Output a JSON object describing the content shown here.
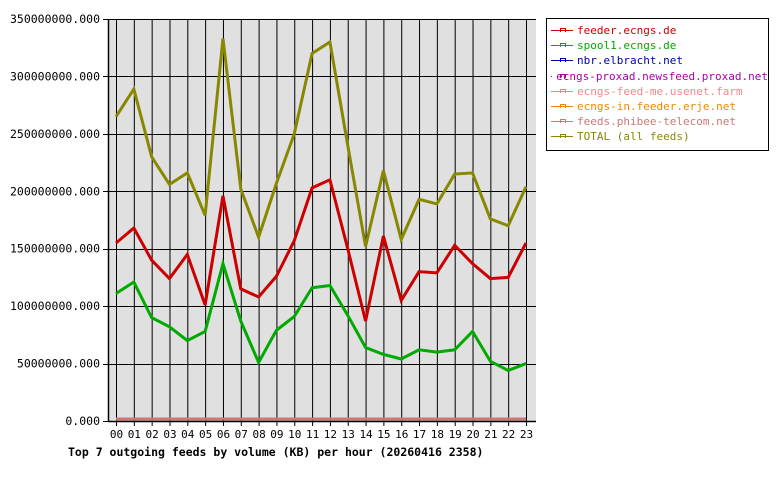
{
  "chart_data": {
    "type": "line",
    "title": "Top 7 outgoing feeds by volume (KB) per hour (20260416 2358)",
    "xlabel": "",
    "ylabel": "",
    "categories": [
      "00",
      "01",
      "02",
      "03",
      "04",
      "05",
      "06",
      "07",
      "08",
      "09",
      "10",
      "11",
      "12",
      "13",
      "14",
      "15",
      "16",
      "17",
      "18",
      "19",
      "20",
      "21",
      "22",
      "23"
    ],
    "yticks": [
      "0.000",
      "50000000.000",
      "100000000.000",
      "150000000.000",
      "200000000.000",
      "250000000.000",
      "300000000.000",
      "350000000.000"
    ],
    "ylim": [
      0,
      350000000
    ],
    "grid": true,
    "legend_position": "right",
    "series": [
      {
        "name": "feeder.ecngs.de",
        "color": "#cc0000",
        "values": [
          155000000,
          168000000,
          140000000,
          124000000,
          145000000,
          101000000,
          196000000,
          115000000,
          108000000,
          126000000,
          157000000,
          203000000,
          210000000,
          150000000,
          87000000,
          161000000,
          105000000,
          130000000,
          129000000,
          153000000,
          137000000,
          124000000,
          125000000,
          155000000
        ]
      },
      {
        "name": "spool1.ecngs.de",
        "color": "#00aa00",
        "values": [
          111000000,
          121000000,
          90000000,
          82000000,
          70000000,
          78000000,
          137000000,
          87000000,
          51000000,
          79000000,
          91000000,
          116000000,
          118000000,
          92000000,
          64000000,
          58000000,
          54000000,
          62000000,
          60000000,
          62000000,
          78000000,
          52000000,
          44000000,
          50000000
        ]
      },
      {
        "name": "nbr.elbracht.net",
        "color": "#0000aa",
        "values": [
          0,
          0,
          0,
          0,
          0,
          0,
          0,
          0,
          0,
          0,
          0,
          0,
          0,
          0,
          0,
          0,
          0,
          0,
          0,
          0,
          0,
          0,
          0,
          0
        ]
      },
      {
        "name": "ecngs-proxad.newsfeed.proxad.net",
        "color": "#aa00aa",
        "values": [
          0,
          0,
          0,
          0,
          0,
          0,
          0,
          0,
          0,
          0,
          0,
          0,
          0,
          0,
          0,
          0,
          0,
          0,
          0,
          0,
          0,
          0,
          0,
          0
        ]
      },
      {
        "name": "ecngs-feed-me.usenet.farm",
        "color": "#ee8888",
        "values": [
          0,
          0,
          0,
          0,
          0,
          0,
          0,
          0,
          0,
          0,
          0,
          0,
          0,
          0,
          0,
          0,
          0,
          0,
          0,
          0,
          0,
          0,
          0,
          0
        ]
      },
      {
        "name": "ecngs-in.feeder.erje.net",
        "color": "#ee8800",
        "values": [
          0,
          0,
          0,
          0,
          0,
          0,
          0,
          0,
          0,
          0,
          0,
          0,
          0,
          0,
          0,
          0,
          0,
          0,
          0,
          0,
          0,
          0,
          0,
          0
        ]
      },
      {
        "name": "feeds.phibee-telecom.net",
        "color": "#cc7777",
        "values": [
          0,
          0,
          0,
          0,
          0,
          0,
          0,
          0,
          0,
          0,
          0,
          0,
          0,
          0,
          0,
          0,
          0,
          0,
          0,
          0,
          0,
          0,
          0,
          0
        ]
      },
      {
        "name": "TOTAL (all feeds)",
        "color": "#888800",
        "values": [
          265000000,
          289000000,
          230000000,
          206000000,
          216000000,
          179000000,
          333000000,
          202000000,
          160000000,
          207000000,
          250000000,
          320000000,
          330000000,
          240000000,
          152000000,
          218000000,
          158000000,
          193000000,
          189000000,
          215000000,
          216000000,
          176000000,
          170000000,
          204000000
        ]
      }
    ]
  },
  "legend": {
    "items": [
      {
        "label": "feeder.ecngs.de",
        "color": "#cc0000"
      },
      {
        "label": "spool1.ecngs.de",
        "color": "#00aa00"
      },
      {
        "label": "nbr.elbracht.net",
        "color": "#0000aa"
      },
      {
        "label": "ecngs-proxad.newsfeed.proxad.net",
        "color": "#aa00aa"
      },
      {
        "label": "ecngs-feed-me.usenet.farm",
        "color": "#ee8888"
      },
      {
        "label": "ecngs-in.feeder.erje.net",
        "color": "#ee8800"
      },
      {
        "label": "feeds.phibee-telecom.net",
        "color": "#cc7777"
      },
      {
        "label": "TOTAL (all feeds)",
        "color": "#888800"
      }
    ]
  },
  "caption": "Top 7 outgoing feeds by volume (KB) per hour (20260416 2358)",
  "colors": {
    "plot_background": "#e0e0e0",
    "grid": "#000000",
    "axis": "#000000"
  }
}
